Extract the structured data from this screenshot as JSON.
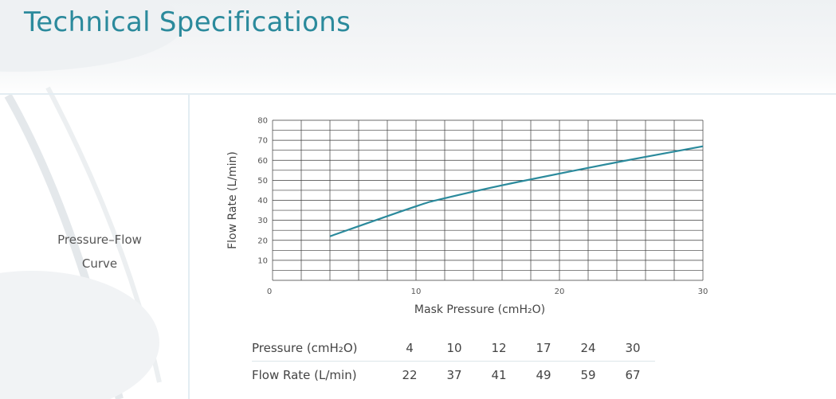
{
  "page": {
    "title": "Technical Specifications"
  },
  "row_label": {
    "line1": "Pressure–Flow",
    "line2": "Curve"
  },
  "colors": {
    "title": "#2b8a9c",
    "curve": "#2b8a9c",
    "grid": "#3a3a3a"
  },
  "chart_data": {
    "type": "line",
    "xlabel": "Mask Pressure (cmH₂O)",
    "ylabel": "Flow Rate (L/min)",
    "xlim": [
      0,
      30
    ],
    "ylim": [
      0,
      80
    ],
    "x_ticks": [
      "0",
      "10",
      "20",
      "30"
    ],
    "y_ticks": [
      "10",
      "20",
      "30",
      "40",
      "50",
      "60",
      "70",
      "80"
    ],
    "grid": true,
    "series": [
      {
        "x": [
          4,
          10,
          12,
          17,
          24,
          30
        ],
        "values": [
          22,
          37,
          41,
          49,
          59,
          67
        ]
      }
    ]
  },
  "spec_table": {
    "rows": [
      {
        "label": "Pressure (cmH₂O)",
        "values": [
          "4",
          "10",
          "12",
          "17",
          "24",
          "30"
        ]
      },
      {
        "label": "Flow Rate (L/min)",
        "values": [
          "22",
          "37",
          "41",
          "49",
          "59",
          "67"
        ]
      }
    ]
  }
}
